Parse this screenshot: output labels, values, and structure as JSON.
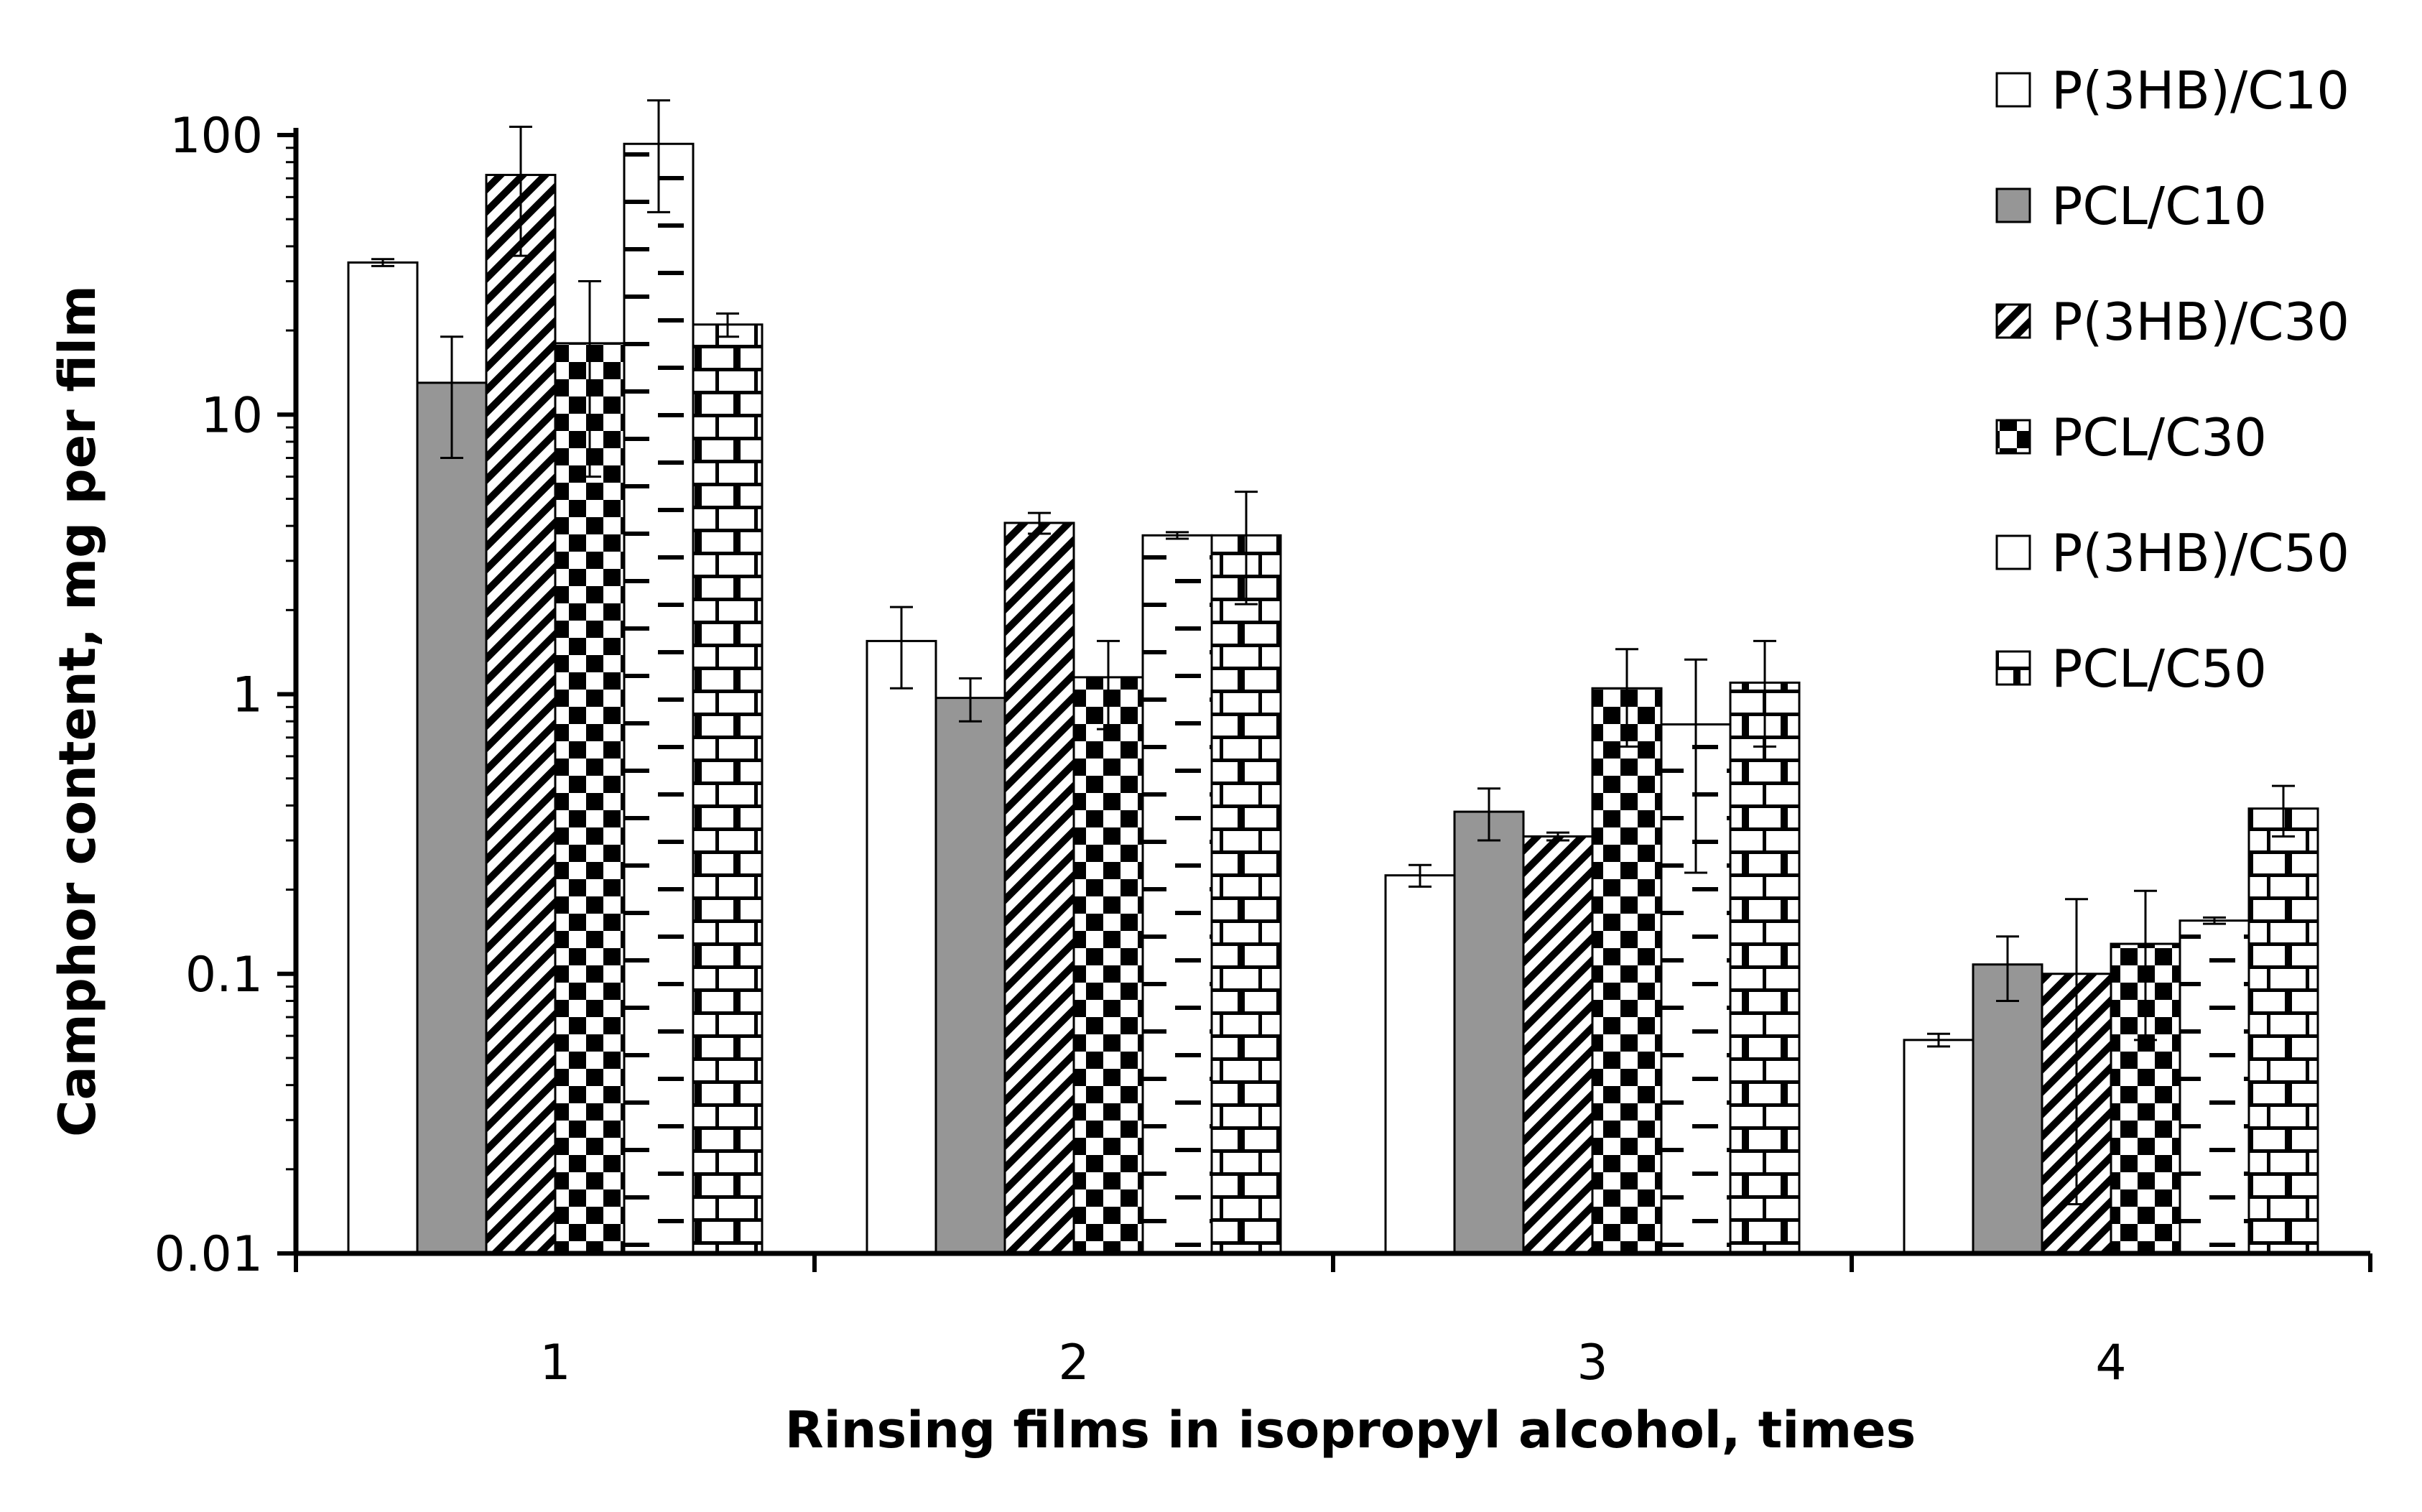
{
  "chart_data": {
    "type": "bar",
    "title": "",
    "xlabel": "Rinsing films in isopropyl alcohol, times",
    "ylabel": "Camphor content, mg per film",
    "y_scale": "log",
    "ylim": [
      0.01,
      100
    ],
    "y_ticks": [
      "0.01",
      "0.1",
      "1",
      "10",
      "100"
    ],
    "categories": [
      "1",
      "2",
      "3",
      "4"
    ],
    "grid": false,
    "legend_position": "top-right",
    "series": [
      {
        "name": "P(3HB)/C10",
        "pattern": "white",
        "values": [
          35,
          1.55,
          0.225,
          0.058
        ],
        "errors": [
          1.0,
          0.5,
          0.02,
          0.003
        ]
      },
      {
        "name": "PCL/C10",
        "pattern": "gray",
        "values": [
          13,
          0.97,
          0.38,
          0.108
        ],
        "errors": [
          6.0,
          0.17,
          0.08,
          0.028
        ]
      },
      {
        "name": "P(3HB)/C30",
        "pattern": "diagonal",
        "values": [
          72,
          4.1,
          0.31,
          0.1
        ],
        "errors": [
          35,
          0.35,
          0.01,
          0.085
        ]
      },
      {
        "name": "PCL/C30",
        "pattern": "checker",
        "values": [
          18,
          1.15,
          1.05,
          0.128
        ],
        "errors": [
          12,
          0.4,
          0.4,
          0.07
        ]
      },
      {
        "name": "P(3HB)/C50",
        "pattern": "dash",
        "values": [
          93,
          3.7,
          0.78,
          0.155
        ],
        "errors": [
          40,
          0.1,
          0.55,
          0.004
        ]
      },
      {
        "name": "PCL/C50",
        "pattern": "brick",
        "values": [
          21,
          3.7,
          1.1,
          0.39
        ],
        "errors": [
          2.0,
          1.6,
          0.45,
          0.08
        ]
      }
    ]
  }
}
